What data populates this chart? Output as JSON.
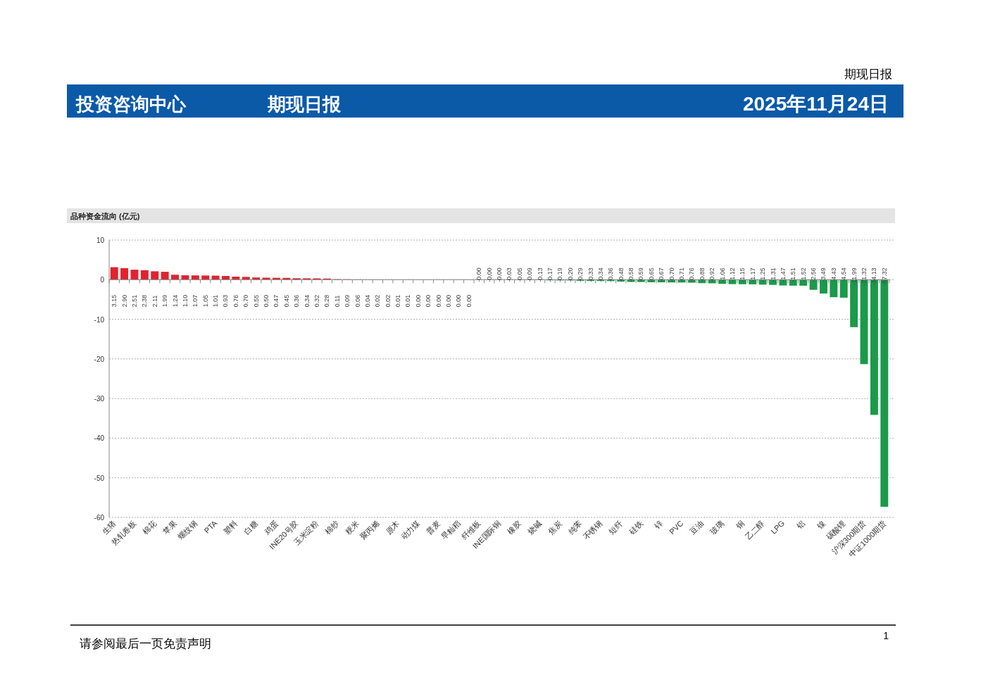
{
  "chart_data": {
    "type": "bar",
    "title": "品种资金流向 (亿元)",
    "categories": [
      "生猪",
      null,
      "热轧卷板",
      null,
      "棉花",
      null,
      "苹果",
      null,
      "螺纹钢",
      null,
      "PTA",
      null,
      "塑料",
      null,
      "白糖",
      null,
      "鸡蛋",
      null,
      "INE20号胶",
      null,
      "玉米淀粉",
      null,
      "棉纱",
      null,
      "粳米",
      null,
      "聚丙烯",
      null,
      "原木",
      null,
      "动力煤",
      null,
      "普麦",
      null,
      "早籼稻",
      null,
      "纤维板",
      null,
      "INE国际铜",
      null,
      "橡胶",
      null,
      "烧碱",
      null,
      "焦炭",
      null,
      "纯苯",
      null,
      "不锈钢",
      null,
      "短纤",
      null,
      "硅铁",
      null,
      "锌",
      null,
      "PVC",
      null,
      "豆油",
      null,
      "玻璃",
      null,
      "铜",
      null,
      "乙二醇",
      null,
      "LPG",
      null,
      "铝",
      null,
      "镍",
      null,
      "碳酸锂",
      null,
      "沪深300期货",
      null,
      "中证1000期货"
    ],
    "values": [
      3.15,
      2.9,
      2.51,
      2.38,
      2.11,
      1.99,
      1.24,
      1.1,
      1.07,
      1.05,
      1.01,
      0.93,
      0.76,
      0.7,
      0.55,
      0.5,
      0.47,
      0.45,
      0.36,
      0.34,
      0.32,
      0.28,
      0.11,
      0.09,
      0.06,
      0.04,
      0.02,
      0.02,
      0.01,
      0.01,
      0.0,
      0.0,
      0.0,
      0.0,
      0.0,
      0.0,
      0.0,
      0.0,
      0.0,
      -0.03,
      -0.05,
      -0.09,
      -0.13,
      -0.17,
      -0.19,
      -0.2,
      -0.29,
      -0.33,
      -0.34,
      -0.36,
      -0.48,
      -0.58,
      -0.59,
      -0.65,
      -0.67,
      -0.7,
      -0.71,
      -0.76,
      -0.88,
      -0.92,
      -1.06,
      -1.12,
      -1.15,
      -1.17,
      -1.25,
      -1.31,
      -1.47,
      -1.51,
      -1.52,
      -2.56,
      -3.49,
      -4.43,
      -4.54,
      -11.99,
      -21.32,
      -34.13,
      -57.32
    ],
    "value_labels": [
      "3.15",
      "2.90",
      "2.51",
      "2.38",
      "2.11",
      "1.99",
      "1.24",
      "1.10",
      "1.07",
      "1.05",
      "1.01",
      "0.93",
      "0.76",
      "0.70",
      "0.55",
      "0.50",
      "0.47",
      "0.45",
      "0.36",
      "0.34",
      "0.32",
      "0.28",
      "0.11",
      "0.09",
      "0.06",
      "0.04",
      "0.02",
      "0.02",
      "0.01",
      "0.01",
      "0.00",
      "0.00",
      "0.00",
      "0.00",
      "0.00",
      "0.00",
      "-0.00",
      "-0.00",
      "-0.00",
      "-0.03",
      "-0.05",
      "-0.09",
      "-0.13",
      "-0.17",
      "-0.19",
      "-0.20",
      "-0.29",
      "-0.33",
      "-0.34",
      "-0.36",
      "-0.48",
      "-0.58",
      "-0.59",
      "-0.65",
      "-0.67",
      "-0.70",
      "-0.71",
      "-0.76",
      "-0.88",
      "-0.92",
      "-1.06",
      "-1.12",
      "-1.15",
      "-1.17",
      "-1.25",
      "-1.31",
      "-1.47",
      "-1.51",
      "-1.52",
      "-2.56",
      "-3.49",
      "-4.43",
      "-4.54",
      "-11.99",
      "-21.32",
      "-34.13",
      "-57.32"
    ],
    "colors": [
      "#e0232e",
      "#e0232e",
      "#e0232e",
      "#e0232e",
      "#e0232e",
      "#e0232e",
      "#e0232e",
      "#e0232e",
      "#e0232e",
      "#e0232e",
      "#e0232e",
      "#e0232e",
      "#e0232e",
      "#e0232e",
      "#e0232e",
      "#e0232e",
      "#e0232e",
      "#e0232e",
      "#e0232e",
      "#e0232e",
      "#e0232e",
      "#e0232e",
      "#e0232e",
      "#e0232e",
      "#e0232e",
      "#e0232e",
      "#e0232e",
      "#e0232e",
      "#e0232e",
      "#e0232e",
      "#e0232e",
      "#e0232e",
      "#e0232e",
      "#e0232e",
      "#e0232e",
      "#e0232e",
      "#1a9a4a",
      "#1a9a4a",
      "#1a9a4a",
      "#1a9a4a",
      "#1a9a4a",
      "#1a9a4a",
      "#1a9a4a",
      "#1a9a4a",
      "#1a9a4a",
      "#1a9a4a",
      "#1a9a4a",
      "#1a9a4a",
      "#1a9a4a",
      "#1a9a4a",
      "#1a9a4a",
      "#1a9a4a",
      "#1a9a4a",
      "#1a9a4a",
      "#1a9a4a",
      "#1a9a4a",
      "#1a9a4a",
      "#1a9a4a",
      "#1a9a4a",
      "#1a9a4a",
      "#1a9a4a",
      "#1a9a4a",
      "#1a9a4a",
      "#1a9a4a",
      "#1a9a4a",
      "#1a9a4a",
      "#1a9a4a",
      "#1a9a4a",
      "#1a9a4a",
      "#1a9a4a",
      "#1a9a4a",
      "#1a9a4a",
      "#1a9a4a",
      "#1a9a4a",
      "#1a9a4a",
      "#1a9a4a",
      "#1a9a4a"
    ],
    "ylim": [
      -60,
      10
    ],
    "yticks": [
      10,
      0,
      -10,
      -20,
      -30,
      -40,
      -50,
      -60
    ],
    "grid": "y",
    "annotations": [
      "期现日报",
      "投资咨询中心",
      "期现日报",
      "2025年11月24日",
      "请参阅最后一页免责声明",
      "1"
    ]
  }
}
